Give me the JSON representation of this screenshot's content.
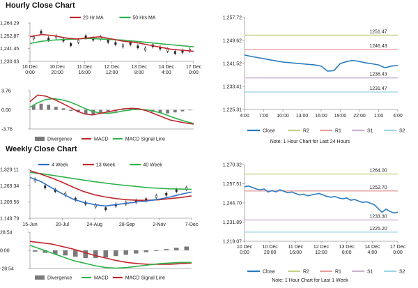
{
  "sections": {
    "hourly_title": "Hourly Close Chart",
    "weekly_title": "Weekly Close Chart"
  },
  "colors": {
    "ma_red": "#c0262d",
    "ma_green": "#2db34a",
    "ma_blue": "#2d6fc4",
    "macd_bar": "#7a7a7a",
    "close_line": "#2b7bc0",
    "r2_line": "#c5d28a",
    "r1_line": "#e6a0a0",
    "s1_line": "#c9b2cf",
    "s2_line": "#9fd4e6",
    "axis": "#999999"
  },
  "chart_data": [
    {
      "id": "hourly_ma",
      "type": "line",
      "legend": [
        {
          "label": "20 Hr MA",
          "color": "#c0262d"
        },
        {
          "label": "50 Hrs MA",
          "color": "#2db34a"
        }
      ],
      "y_ticks": [
        "1,264.29",
        "1,252.87",
        "1,241.45",
        "1,230.03"
      ],
      "ylim": [
        1230.03,
        1264.29
      ],
      "x_ticks": [
        [
          "10 Dec",
          "0:00"
        ],
        [
          "10 Dec",
          "20:00"
        ],
        [
          "11 Dec",
          "16:00"
        ],
        [
          "12 Dec",
          "12:00"
        ],
        [
          "13 Dec",
          "8:00"
        ],
        [
          "14 Dec",
          "4:00"
        ],
        [
          "17 Dec",
          "0:00"
        ]
      ],
      "series": [
        {
          "values": [
            1252,
            1254,
            1253,
            1251,
            1250,
            1251,
            1252,
            1250,
            1248,
            1247,
            1245,
            1243,
            1241,
            1240,
            1239
          ]
        },
        {
          "values": [
            1246,
            1248,
            1249,
            1249.5,
            1250,
            1250.5,
            1250,
            1249.5,
            1249,
            1248,
            1247,
            1246,
            1245,
            1244,
            1243
          ]
        }
      ],
      "price": [
        1251,
        1256,
        1250,
        1252,
        1249,
        1245,
        1248,
        1252,
        1250,
        1251,
        1248,
        1246,
        1244,
        1246,
        1243,
        1241,
        1244,
        1242,
        1240,
        1238,
        1239,
        1240
      ]
    },
    {
      "id": "hourly_macd",
      "type": "bar",
      "legend": [
        {
          "label": "Divergence",
          "color": "#7a7a7a"
        },
        {
          "label": "MACD",
          "color": "#c0262d"
        },
        {
          "label": "MACD Signal Line",
          "color": "#2db34a"
        }
      ],
      "y_ticks": [
        "3.76",
        "0.00",
        "-3.76"
      ],
      "ylim": [
        -3.76,
        3.76
      ],
      "divergence": [
        0.9,
        1.2,
        1.0,
        0.6,
        0.3,
        -0.2,
        -0.5,
        -0.8,
        -0.9,
        -0.7,
        -0.5,
        -0.3,
        0.1,
        0.3,
        0.2,
        -0.2,
        -0.4,
        -0.6,
        -0.7,
        -0.5,
        -0.3,
        -0.1
      ],
      "macd": [
        1.6,
        2.9,
        2.7,
        2.1,
        1.4,
        0.6,
        -0.2,
        -0.8,
        -1.0,
        -0.7,
        -0.4,
        -0.1,
        0.2,
        0.3,
        0.2,
        -0.2,
        -0.8,
        -1.4,
        -2.0,
        -2.3,
        -2.6,
        -2.8
      ],
      "signal": [
        0.5,
        1.4,
        2.0,
        2.2,
        2.0,
        1.6,
        1.0,
        0.3,
        -0.3,
        -0.6,
        -0.7,
        -0.5,
        -0.2,
        0.0,
        0.1,
        0.0,
        -0.3,
        -0.7,
        -1.3,
        -1.8,
        -2.3,
        -2.7
      ]
    },
    {
      "id": "hourly_close",
      "type": "line",
      "y_ticks": [
        "1,257.72",
        "1,249.62",
        "1,241.52",
        "1,233.41",
        "1,225.31"
      ],
      "ylim": [
        1225.31,
        1257.72
      ],
      "x_ticks": [
        "4:00",
        "7:00",
        "10:00",
        "13:00",
        "16:00",
        "19:00",
        "22:00",
        "1:00",
        "4:00"
      ],
      "close": [
        1244.5,
        1244.0,
        1243.6,
        1243.2,
        1242.8,
        1242.4,
        1242.0,
        1241.8,
        1241.6,
        1241.4,
        1241.2,
        1241.0,
        1240.6,
        1238.8,
        1239.0,
        1241.5,
        1242.2,
        1242.6,
        1242.2,
        1241.7,
        1241.4,
        1241.0,
        1240.0,
        1240.6,
        1240.8
      ],
      "levels": [
        {
          "name": "R2",
          "value": 1251.47,
          "label": "1251.47",
          "color": "#c5d28a"
        },
        {
          "name": "R1",
          "value": 1246.43,
          "label": "1246.43",
          "color": "#e6a0a0"
        },
        {
          "name": "S1",
          "value": 1236.43,
          "label": "1236.43",
          "color": "#c9b2cf"
        },
        {
          "name": "S2",
          "value": 1231.47,
          "label": "1231.47",
          "color": "#9fd4e6"
        }
      ],
      "legend": [
        "Close",
        "R2",
        "R1",
        "S1",
        "S2"
      ],
      "note": "Note: 1 Hour Chart for Last 24 Hours"
    },
    {
      "id": "weekly_ma",
      "type": "line",
      "legend": [
        {
          "label": "4 Week",
          "color": "#2d6fc4"
        },
        {
          "label": "13 Week",
          "color": "#c0262d"
        },
        {
          "label": "40 Week",
          "color": "#2db34a"
        }
      ],
      "y_ticks": [
        "1,329.11",
        "1,269.34",
        "1,209.56",
        "1,149.79"
      ],
      "ylim": [
        1149.79,
        1329.11
      ],
      "x_ticks": [
        "15-Jun",
        "20-Jul",
        "24-Aug",
        "28-Sep",
        "2-Nov",
        "7-Dec"
      ],
      "series": [
        {
          "name": "4 Week",
          "values": [
            1300,
            1285,
            1262,
            1240,
            1220,
            1208,
            1200,
            1195,
            1200,
            1205,
            1210,
            1214,
            1220,
            1228,
            1238,
            1246
          ]
        },
        {
          "name": "13 Week",
          "values": [
            1325,
            1312,
            1298,
            1282,
            1264,
            1248,
            1236,
            1228,
            1222,
            1218,
            1216,
            1216,
            1218,
            1222,
            1226,
            1232
          ]
        },
        {
          "name": "40 Week",
          "values": [
            1318,
            1314,
            1308,
            1302,
            1296,
            1290,
            1284,
            1279,
            1274,
            1270,
            1266,
            1262,
            1260,
            1258,
            1257,
            1256
          ]
        }
      ],
      "price": [
        1290,
        1265,
        1252,
        1238,
        1220,
        1205,
        1195,
        1185,
        1198,
        1205,
        1212,
        1218,
        1230,
        1238,
        1252,
        1260
      ]
    },
    {
      "id": "weekly_macd",
      "type": "bar",
      "legend": [
        {
          "label": "Divergence",
          "color": "#7a7a7a"
        },
        {
          "label": "MACD",
          "color": "#2db34a"
        },
        {
          "label": "MACD Signal Line",
          "color": "#c0262d"
        }
      ],
      "y_ticks": [
        "28.54",
        "0.00",
        "-28.54"
      ],
      "ylim": [
        -28.54,
        28.54
      ],
      "divergence": [
        -2,
        -4,
        -6,
        -8,
        -10,
        -12,
        -12,
        -11,
        -9,
        -7,
        -5,
        -3,
        -1,
        2,
        4,
        6
      ],
      "macd": [
        8,
        2,
        -4,
        -10,
        -16,
        -20,
        -24,
        -27,
        -28,
        -27,
        -25,
        -23,
        -21,
        -20,
        -19,
        -19
      ],
      "signal": [
        14,
        12,
        10,
        6,
        2,
        -3,
        -8,
        -12,
        -16,
        -19,
        -21,
        -22,
        -22,
        -22,
        -21,
        -20
      ]
    },
    {
      "id": "weekly_close",
      "type": "line",
      "y_ticks": [
        "1,270.32",
        "1,257.51",
        "1,244.70",
        "1,231.89",
        "1,219.07"
      ],
      "ylim": [
        1219.07,
        1270.32
      ],
      "x_ticks": [
        [
          "10 Dec",
          "0:00"
        ],
        [
          "10 Dec",
          "20:00"
        ],
        [
          "11 Dec",
          "16:00"
        ],
        [
          "12 Dec",
          "12:00"
        ],
        [
          "13 Dec",
          "8:00"
        ],
        [
          "14 Dec",
          "4:00"
        ],
        [
          "17 Dec",
          "0:00"
        ]
      ],
      "close": [
        1255.5,
        1256.0,
        1255.0,
        1254.0,
        1253.5,
        1254.0,
        1252.0,
        1253.0,
        1252.0,
        1253.5,
        1252.5,
        1251.5,
        1252.0,
        1251.0,
        1250.0,
        1250.5,
        1249.5,
        1250.0,
        1250.5,
        1251.0,
        1250.0,
        1249.0,
        1248.5,
        1249.0,
        1248.0,
        1247.5,
        1248.0,
        1246.5,
        1247.0,
        1246.0,
        1245.0,
        1245.5,
        1244.5,
        1243.5,
        1241.0,
        1238.5,
        1240.5,
        1239.0,
        1238.0,
        1238.5
      ],
      "levels": [
        {
          "name": "R2",
          "value": 1264.0,
          "label": "1264.00",
          "color": "#c5d28a"
        },
        {
          "name": "R1",
          "value": 1252.7,
          "label": "1252.70",
          "color": "#e6a0a0"
        },
        {
          "name": "S1",
          "value": 1233.3,
          "label": "1233.30",
          "color": "#c9b2cf"
        },
        {
          "name": "S2",
          "value": 1225.2,
          "label": "1225.20",
          "color": "#9fd4e6"
        }
      ],
      "legend": [
        "Close",
        "R2",
        "R1",
        "S1",
        "S2"
      ],
      "note": "Note: 1 Hour Chart for Last 1 Week"
    }
  ]
}
